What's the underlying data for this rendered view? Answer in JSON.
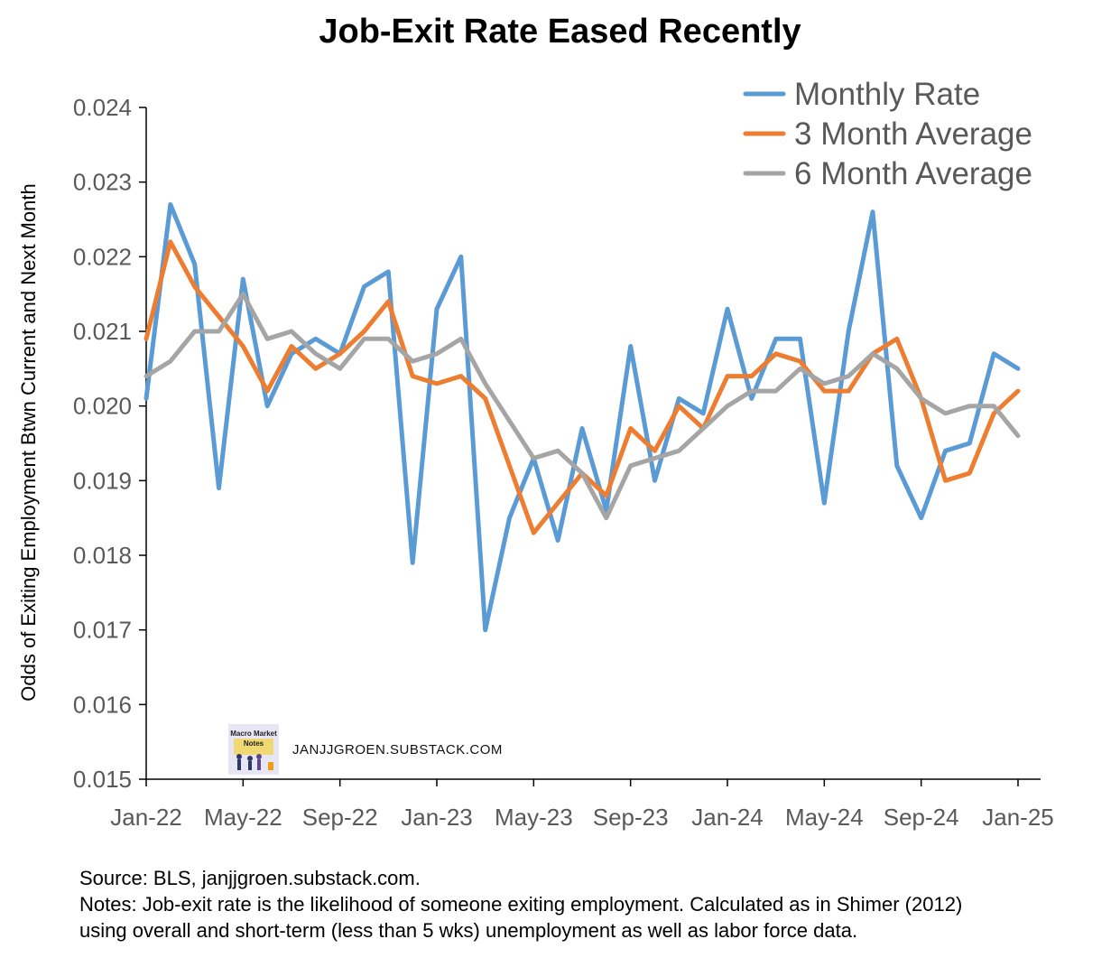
{
  "title": "Job-Exit Rate Eased Recently",
  "notes": {
    "source": "Source: BLS, janjjgroen.substack.com.",
    "line1": "Notes: Job-exit rate is the likelihood of someone exiting employment. Calculated as in Shimer (2012)",
    "line2": "using overall and short-term (less than 5 wks) unemployment as well as labor force data."
  },
  "watermark": {
    "logo_text": "Macro Market Notes",
    "text": "JANJJGROEN.SUBSTACK.COM"
  },
  "chart_data": {
    "type": "line",
    "title": "Job-Exit Rate Eased Recently",
    "xlabel": "",
    "ylabel": "Odds of Exiting Employment Btwn Current and Next Month",
    "ylim": [
      0.015,
      0.024
    ],
    "yticks": [
      "0.015",
      "0.016",
      "0.017",
      "0.018",
      "0.019",
      "0.020",
      "0.021",
      "0.022",
      "0.023",
      "0.024"
    ],
    "x": [
      "Jan-22",
      "Feb-22",
      "Mar-22",
      "Apr-22",
      "May-22",
      "Jun-22",
      "Jul-22",
      "Aug-22",
      "Sep-22",
      "Oct-22",
      "Nov-22",
      "Dec-22",
      "Jan-23",
      "Feb-23",
      "Mar-23",
      "Apr-23",
      "May-23",
      "Jun-23",
      "Jul-23",
      "Aug-23",
      "Sep-23",
      "Oct-23",
      "Nov-23",
      "Dec-23",
      "Jan-24",
      "Feb-24",
      "Mar-24",
      "Apr-24",
      "May-24",
      "Jun-24",
      "Jul-24",
      "Aug-24",
      "Sep-24",
      "Oct-24",
      "Nov-24",
      "Dec-24",
      "Jan-25"
    ],
    "xtick_labels": [
      "Jan-22",
      "May-22",
      "Sep-22",
      "Jan-23",
      "May-23",
      "Sep-23",
      "Jan-24",
      "May-24",
      "Sep-24",
      "Jan-25"
    ],
    "grid": false,
    "legend_position": "top-right",
    "series": [
      {
        "name": "Monthly Rate",
        "color": "#5B9BD5",
        "values": [
          0.0201,
          0.0227,
          0.0219,
          0.0189,
          0.0217,
          0.02,
          0.0207,
          0.0209,
          0.0207,
          0.0216,
          0.0218,
          0.0179,
          0.0213,
          0.022,
          0.017,
          0.0185,
          0.0193,
          0.0182,
          0.0197,
          0.0186,
          0.0208,
          0.019,
          0.0201,
          0.0199,
          0.0213,
          0.0201,
          0.0209,
          0.0209,
          0.0187,
          0.021,
          0.0226,
          0.0192,
          0.0185,
          0.0194,
          0.0195,
          0.0207,
          0.0205
        ]
      },
      {
        "name": "3 Month Average",
        "color": "#ED7D31",
        "values": [
          0.0209,
          0.0222,
          0.0216,
          0.0212,
          0.0208,
          0.0202,
          0.0208,
          0.0205,
          0.0207,
          0.021,
          0.0214,
          0.0204,
          0.0203,
          0.0204,
          0.0201,
          0.0192,
          0.0183,
          0.0187,
          0.0191,
          0.0188,
          0.0197,
          0.0194,
          0.02,
          0.0197,
          0.0204,
          0.0204,
          0.0207,
          0.0206,
          0.0202,
          0.0202,
          0.0207,
          0.0209,
          0.0201,
          0.019,
          0.0191,
          0.0199,
          0.0202
        ]
      },
      {
        "name": "6 Month Average",
        "color": "#A5A5A5",
        "values": [
          0.0204,
          0.0206,
          0.021,
          0.021,
          0.0215,
          0.0209,
          0.021,
          0.0207,
          0.0205,
          0.0209,
          0.0209,
          0.0206,
          0.0207,
          0.0209,
          0.0203,
          0.0198,
          0.0193,
          0.0194,
          0.0191,
          0.0185,
          0.0192,
          0.0193,
          0.0194,
          0.0197,
          0.02,
          0.0202,
          0.0202,
          0.0205,
          0.0203,
          0.0204,
          0.0207,
          0.0205,
          0.0201,
          0.0199,
          0.02,
          0.02,
          0.0196
        ]
      }
    ]
  }
}
